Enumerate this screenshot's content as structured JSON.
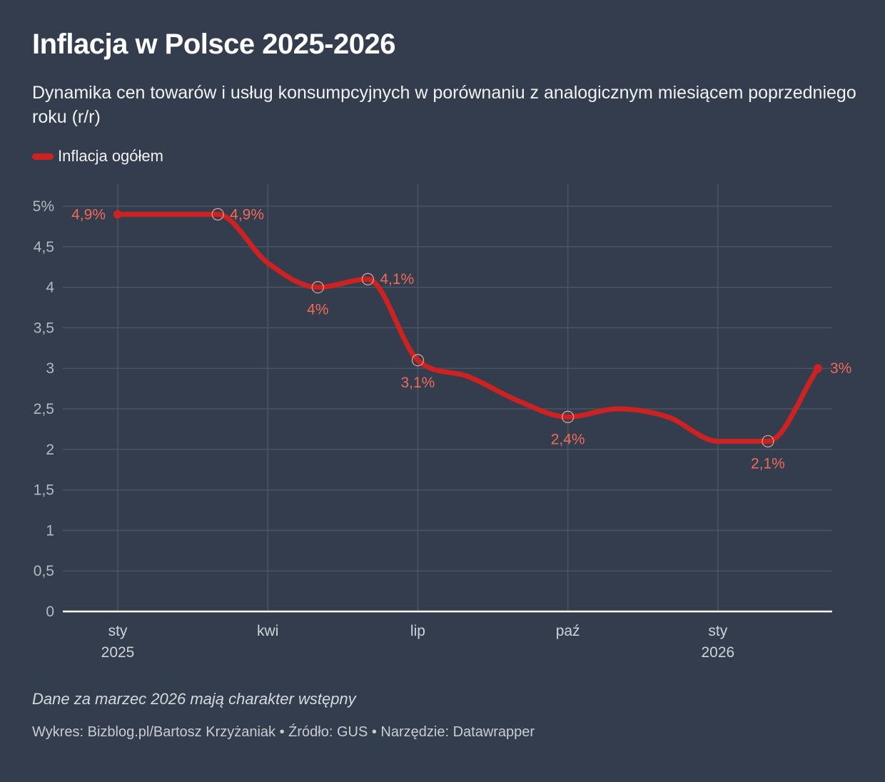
{
  "header": {
    "title": "Inflacja w Polsce 2025-2026",
    "subtitle": "Dynamika cen towarów i usług konsumpcyjnych w porównaniu z analogicznym miesiącem poprzedniego roku (r/r)"
  },
  "legend": {
    "items": [
      {
        "label": "Inflacja ogółem",
        "color": "#cc2222"
      }
    ]
  },
  "footer": {
    "note": "Dane za marzec 2026 mają charakter wstępny",
    "credits": "Wykres: Bizblog.pl/Bartosz Krzyżaniak • Źródło: GUS • Narzędzie: Datawrapper"
  },
  "chart_data": {
    "type": "line",
    "title": "Inflacja w Polsce 2025-2026",
    "xlabel": "",
    "ylabel": "",
    "ylim": [
      0,
      5
    ],
    "grid": true,
    "legend_position": "top-left",
    "y_ticks": [
      {
        "value": 0,
        "label": "0"
      },
      {
        "value": 0.5,
        "label": "0,5"
      },
      {
        "value": 1,
        "label": "1"
      },
      {
        "value": 1.5,
        "label": "1,5"
      },
      {
        "value": 2,
        "label": "2"
      },
      {
        "value": 2.5,
        "label": "2,5"
      },
      {
        "value": 3,
        "label": "3"
      },
      {
        "value": 3.5,
        "label": "3,5"
      },
      {
        "value": 4,
        "label": "4"
      },
      {
        "value": 4.5,
        "label": "4,5"
      },
      {
        "value": 5,
        "label": "5%"
      }
    ],
    "x_ticks": [
      {
        "index": 0,
        "label": "sty",
        "sublabel": "2025"
      },
      {
        "index": 3,
        "label": "kwi",
        "sublabel": ""
      },
      {
        "index": 6,
        "label": "lip",
        "sublabel": ""
      },
      {
        "index": 9,
        "label": "paź",
        "sublabel": ""
      },
      {
        "index": 12,
        "label": "sty",
        "sublabel": "2026"
      }
    ],
    "x": [
      "2025-01",
      "2025-02",
      "2025-03",
      "2025-04",
      "2025-05",
      "2025-06",
      "2025-07",
      "2025-08",
      "2025-09",
      "2025-10",
      "2025-11",
      "2025-12",
      "2026-01",
      "2026-02",
      "2026-03"
    ],
    "series": [
      {
        "name": "Inflacja ogółem",
        "color": "#cc2222",
        "values": [
          4.9,
          4.9,
          4.9,
          4.3,
          4.0,
          4.1,
          3.1,
          2.9,
          2.6,
          2.4,
          2.5,
          2.4,
          2.1,
          2.1,
          3.0
        ]
      }
    ],
    "annotations": [
      {
        "index": 0,
        "label": "4,9%",
        "position": "left",
        "marker": "dot"
      },
      {
        "index": 2,
        "label": "4,9%",
        "position": "right",
        "marker": "circle"
      },
      {
        "index": 4,
        "label": "4%",
        "position": "below",
        "marker": "circle"
      },
      {
        "index": 5,
        "label": "4,1%",
        "position": "right",
        "marker": "circle"
      },
      {
        "index": 6,
        "label": "3,1%",
        "position": "below",
        "marker": "circle"
      },
      {
        "index": 9,
        "label": "2,4%",
        "position": "below",
        "marker": "circle"
      },
      {
        "index": 13,
        "label": "2,1%",
        "position": "below",
        "marker": "circle"
      },
      {
        "index": 14,
        "label": "3%",
        "position": "right",
        "marker": "dot"
      }
    ]
  }
}
